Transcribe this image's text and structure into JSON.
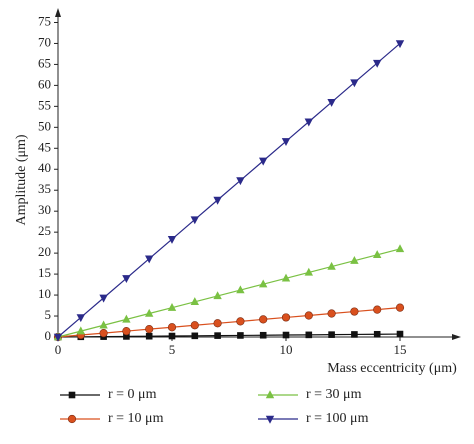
{
  "chart_data": {
    "type": "line",
    "xlabel": "Mass eccentricity (μm)",
    "ylabel": "Amplitude (μm)",
    "x": [
      0,
      1,
      2,
      3,
      4,
      5,
      6,
      7,
      8,
      9,
      10,
      11,
      12,
      13,
      14,
      15
    ],
    "series": [
      {
        "name": "r = 0 μm",
        "color": "#111111",
        "marker": "square",
        "values": [
          0,
          0.05,
          0.09,
          0.14,
          0.19,
          0.23,
          0.28,
          0.33,
          0.37,
          0.42,
          0.47,
          0.51,
          0.56,
          0.61,
          0.65,
          0.7
        ]
      },
      {
        "name": "r = 10 μm",
        "color": "#d9501e",
        "marker": "circle",
        "values": [
          0,
          0.47,
          0.93,
          1.4,
          1.87,
          2.33,
          2.8,
          3.27,
          3.73,
          4.2,
          4.67,
          5.13,
          5.6,
          6.07,
          6.53,
          7
        ]
      },
      {
        "name": "r = 30 μm",
        "color": "#7ac143",
        "marker": "triangle-up",
        "values": [
          0,
          1.4,
          2.8,
          4.2,
          5.6,
          7,
          8.4,
          9.8,
          11.2,
          12.6,
          14,
          15.4,
          16.8,
          18.2,
          19.6,
          21
        ]
      },
      {
        "name": "r = 100 μm",
        "color": "#2b2a8a",
        "marker": "triangle-down",
        "values": [
          0,
          4.67,
          9.33,
          14,
          18.67,
          23.33,
          28,
          32.67,
          37.33,
          42,
          46.67,
          51.33,
          56,
          60.67,
          65.33,
          70
        ]
      }
    ],
    "xlim": [
      0,
      17.5
    ],
    "ylim": [
      0,
      77.5
    ],
    "xticks": [
      0,
      5,
      10,
      15
    ],
    "yticks": [
      0,
      5,
      10,
      15,
      20,
      25,
      30,
      35,
      40,
      45,
      50,
      55,
      60,
      65,
      70,
      75
    ],
    "legend": "bottom"
  }
}
